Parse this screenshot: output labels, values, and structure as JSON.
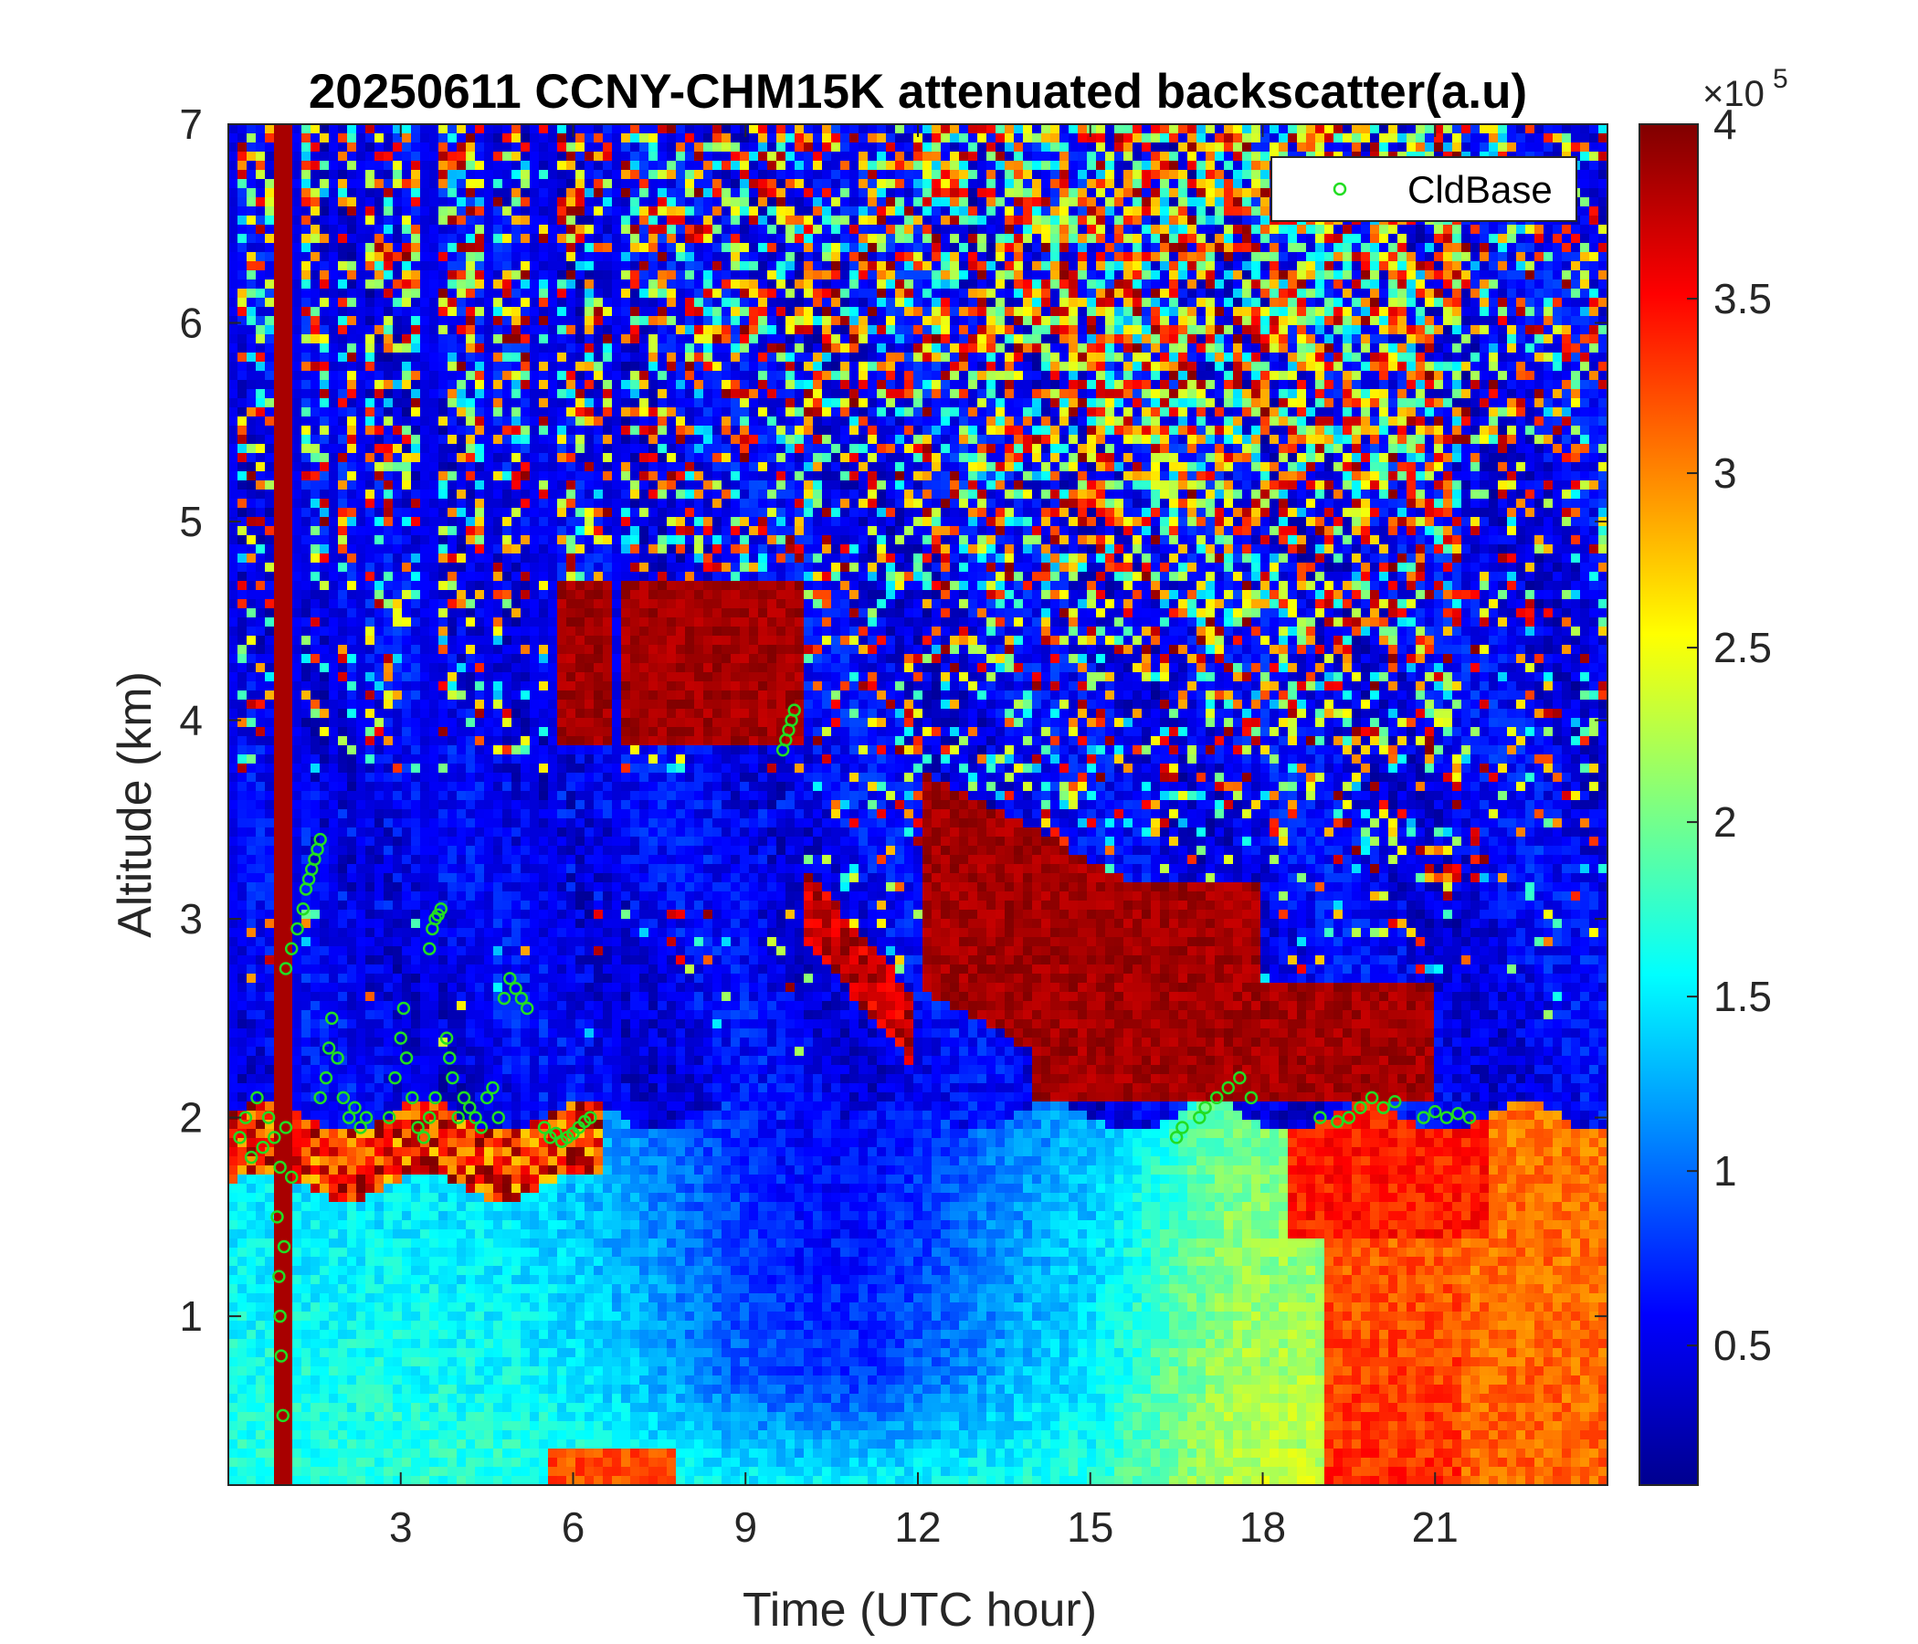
{
  "chart_data": {
    "type": "heatmap",
    "title": "20250611 CCNY-CHM15K attenuated backscatter(a.u)",
    "xlabel": "Time (UTC hour)",
    "ylabel": "Altitude (km)",
    "xlim": [
      0,
      24
    ],
    "ylim": [
      0.15,
      7
    ],
    "xticks": [
      3,
      6,
      9,
      12,
      15,
      18,
      21
    ],
    "xtick_labels": [
      "3",
      "6",
      "9",
      "12",
      "15",
      "18",
      "21"
    ],
    "yticks": [
      1,
      2,
      3,
      4,
      5,
      6,
      7
    ],
    "ytick_labels": [
      "1",
      "2",
      "3",
      "4",
      "5",
      "6",
      "7"
    ],
    "colormap": "jet",
    "colorbar": {
      "clim": [
        0.1,
        4.0
      ],
      "ticks": [
        0.5,
        1,
        1.5,
        2,
        2.5,
        3,
        3.5,
        4
      ],
      "tick_labels": [
        "0.5",
        "1",
        "1.5",
        "2",
        "2.5",
        "3",
        "3.5",
        "4"
      ],
      "multiplier": "×10",
      "multiplier_exponent": "5"
    },
    "legend": {
      "position": "top-right",
      "entries": [
        "CldBase"
      ]
    },
    "series": [
      {
        "name": "CldBase",
        "marker": "circle",
        "color": "#22dd22",
        "points": [
          [
            0.2,
            1.9
          ],
          [
            0.3,
            2.0
          ],
          [
            0.4,
            1.8
          ],
          [
            0.5,
            2.1
          ],
          [
            0.6,
            1.85
          ],
          [
            0.7,
            2.0
          ],
          [
            0.8,
            1.9
          ],
          [
            0.9,
            1.75
          ],
          [
            1.0,
            1.95
          ],
          [
            1.1,
            1.7
          ],
          [
            0.85,
            1.5
          ],
          [
            0.88,
            1.2
          ],
          [
            0.9,
            1.0
          ],
          [
            0.92,
            0.8
          ],
          [
            0.95,
            0.5
          ],
          [
            0.97,
            1.35
          ],
          [
            1.0,
            2.75
          ],
          [
            1.1,
            2.85
          ],
          [
            1.2,
            2.95
          ],
          [
            1.3,
            3.05
          ],
          [
            1.35,
            3.15
          ],
          [
            1.4,
            3.2
          ],
          [
            1.45,
            3.25
          ],
          [
            1.5,
            3.3
          ],
          [
            1.55,
            3.35
          ],
          [
            1.6,
            3.4
          ],
          [
            1.6,
            2.1
          ],
          [
            1.7,
            2.2
          ],
          [
            1.75,
            2.35
          ],
          [
            1.8,
            2.5
          ],
          [
            1.9,
            2.3
          ],
          [
            2.0,
            2.1
          ],
          [
            2.1,
            2.0
          ],
          [
            2.2,
            2.05
          ],
          [
            2.3,
            1.95
          ],
          [
            2.4,
            2.0
          ],
          [
            2.8,
            2.0
          ],
          [
            2.9,
            2.2
          ],
          [
            3.0,
            2.4
          ],
          [
            3.05,
            2.55
          ],
          [
            3.1,
            2.3
          ],
          [
            3.2,
            2.1
          ],
          [
            3.3,
            1.95
          ],
          [
            3.4,
            1.9
          ],
          [
            3.5,
            2.0
          ],
          [
            3.6,
            2.1
          ],
          [
            3.5,
            2.85
          ],
          [
            3.55,
            2.95
          ],
          [
            3.6,
            3.0
          ],
          [
            3.65,
            3.02
          ],
          [
            3.7,
            3.05
          ],
          [
            3.8,
            2.4
          ],
          [
            3.85,
            2.3
          ],
          [
            3.9,
            2.2
          ],
          [
            4.0,
            2.0
          ],
          [
            4.1,
            2.1
          ],
          [
            4.2,
            2.05
          ],
          [
            4.3,
            2.0
          ],
          [
            4.4,
            1.95
          ],
          [
            4.5,
            2.1
          ],
          [
            4.6,
            2.15
          ],
          [
            4.7,
            2.0
          ],
          [
            4.8,
            2.6
          ],
          [
            4.9,
            2.7
          ],
          [
            5.0,
            2.65
          ],
          [
            5.1,
            2.6
          ],
          [
            5.2,
            2.55
          ],
          [
            5.5,
            1.95
          ],
          [
            5.6,
            1.9
          ],
          [
            5.7,
            1.92
          ],
          [
            5.8,
            1.88
          ],
          [
            5.9,
            1.9
          ],
          [
            6.0,
            1.92
          ],
          [
            6.1,
            1.95
          ],
          [
            6.2,
            1.98
          ],
          [
            6.3,
            2.0
          ],
          [
            9.65,
            3.85
          ],
          [
            9.7,
            3.9
          ],
          [
            9.75,
            3.95
          ],
          [
            9.8,
            4.0
          ],
          [
            9.85,
            4.05
          ],
          [
            16.5,
            1.9
          ],
          [
            16.6,
            1.95
          ],
          [
            16.9,
            2.0
          ],
          [
            17.0,
            2.05
          ],
          [
            17.2,
            2.1
          ],
          [
            17.4,
            2.15
          ],
          [
            17.6,
            2.2
          ],
          [
            17.8,
            2.1
          ],
          [
            19.0,
            2.0
          ],
          [
            19.3,
            1.98
          ],
          [
            19.5,
            2.0
          ],
          [
            19.7,
            2.05
          ],
          [
            19.9,
            2.1
          ],
          [
            20.1,
            2.05
          ],
          [
            20.3,
            2.08
          ],
          [
            20.8,
            2.0
          ],
          [
            21.0,
            2.03
          ],
          [
            21.2,
            2.0
          ],
          [
            21.4,
            2.02
          ],
          [
            21.6,
            2.0
          ]
        ]
      }
    ]
  }
}
